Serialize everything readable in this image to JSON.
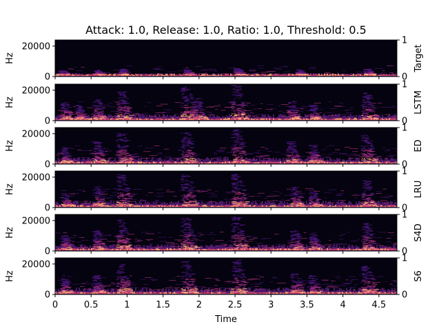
{
  "chart_data": {
    "type": "heatmap",
    "title": "Attack: 1.0, Release: 1.0, Ratio: 1.0, Threshold: 0.5",
    "xlabel": "Time",
    "ylabel": "Hz",
    "xlim": [
      0,
      4.75
    ],
    "ylim": [
      0,
      24000
    ],
    "xticks": [
      "0",
      "0.5",
      "1",
      "1.5",
      "2",
      "2.5",
      "3",
      "3.5",
      "4",
      "4.5"
    ],
    "xtick_values": [
      0,
      0.5,
      1,
      1.5,
      2,
      2.5,
      3,
      3.5,
      4,
      4.5
    ],
    "yticks": [
      "0",
      "20000"
    ],
    "ytick_values": [
      0,
      20000
    ],
    "right_axis_ticks": [
      "0",
      "1"
    ],
    "colormap": "magma",
    "panels": [
      {
        "name": "Target",
        "energy": "low",
        "bursts": [
          [
            0.12,
            0.25
          ],
          [
            0.6,
            0.3
          ],
          [
            0.95,
            0.35
          ],
          [
            1.85,
            0.3
          ],
          [
            2.55,
            0.4
          ],
          [
            3.4,
            0.3
          ],
          [
            4.35,
            0.35
          ]
        ]
      },
      {
        "name": "LSTM",
        "energy": "high",
        "bursts": [
          [
            0.15,
            0.5
          ],
          [
            0.35,
            0.4
          ],
          [
            0.6,
            0.55
          ],
          [
            0.95,
            0.8
          ],
          [
            1.85,
            0.95
          ],
          [
            2.0,
            0.6
          ],
          [
            2.55,
            1.0
          ],
          [
            3.3,
            0.5
          ],
          [
            3.6,
            0.4
          ],
          [
            4.35,
            0.75
          ]
        ]
      },
      {
        "name": "ED",
        "energy": "high",
        "bursts": [
          [
            0.15,
            0.4
          ],
          [
            0.6,
            0.6
          ],
          [
            0.95,
            0.85
          ],
          [
            1.85,
            0.9
          ],
          [
            2.55,
            0.95
          ],
          [
            3.3,
            0.6
          ],
          [
            3.6,
            0.5
          ],
          [
            4.35,
            0.8
          ]
        ]
      },
      {
        "name": "LRU",
        "energy": "high",
        "bursts": [
          [
            0.15,
            0.35
          ],
          [
            0.6,
            0.55
          ],
          [
            0.95,
            0.9
          ],
          [
            1.85,
            0.9
          ],
          [
            2.55,
            0.95
          ],
          [
            3.35,
            0.55
          ],
          [
            3.6,
            0.45
          ],
          [
            4.35,
            0.75
          ]
        ]
      },
      {
        "name": "S4D",
        "energy": "high",
        "bursts": [
          [
            0.15,
            0.4
          ],
          [
            0.6,
            0.55
          ],
          [
            0.95,
            0.85
          ],
          [
            1.85,
            0.9
          ],
          [
            2.55,
            0.95
          ],
          [
            3.35,
            0.55
          ],
          [
            3.6,
            0.45
          ],
          [
            4.35,
            0.75
          ]
        ]
      },
      {
        "name": "S6",
        "energy": "high",
        "bursts": [
          [
            0.15,
            0.4
          ],
          [
            0.6,
            0.5
          ],
          [
            0.95,
            0.85
          ],
          [
            1.85,
            0.9
          ],
          [
            2.55,
            0.95
          ],
          [
            3.35,
            0.55
          ],
          [
            3.6,
            0.5
          ],
          [
            4.35,
            0.8
          ]
        ]
      }
    ]
  }
}
